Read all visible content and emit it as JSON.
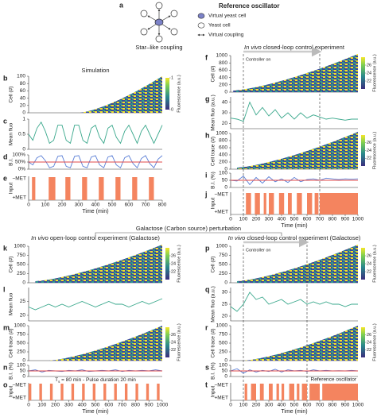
{
  "figure": {
    "label": "a",
    "diagram_caption": "Star–like coupling",
    "legend_title": "Reference oscillator",
    "legend_items": [
      "Virtual yeast cell",
      "Yeast cell",
      "Virtual coupling"
    ],
    "section_title": "Galactose (Carbon source) perturbation"
  },
  "chart_data": [
    {
      "type": "heatmap",
      "label": "b",
      "title": "Simulation",
      "ylabel": "Cell (#)",
      "xlim": [
        0,
        800
      ],
      "ylim": [
        0,
        100
      ],
      "yticks": [
        0,
        20,
        40,
        60,
        80,
        100
      ],
      "clim": [
        0,
        1
      ],
      "cticks": [
        0,
        1
      ],
      "clabel": "Fluorescence (a.u.)"
    },
    {
      "type": "line",
      "label": "c",
      "ylabel": "Mean fluo",
      "xlim": [
        0,
        800
      ],
      "ylim": [
        0,
        1
      ],
      "yticks": [
        0,
        0.5,
        1
      ],
      "x": [
        0,
        25,
        50,
        75,
        100,
        125,
        150,
        175,
        200,
        225,
        250,
        275,
        300,
        325,
        350,
        375,
        400,
        425,
        450,
        475,
        500,
        525,
        550,
        575,
        600,
        625,
        650,
        675,
        700,
        725,
        750,
        775,
        800
      ],
      "series": [
        {
          "color": "#3aa88c",
          "values": [
            0.5,
            0.3,
            0.7,
            0.9,
            0.6,
            0.2,
            0.3,
            0.8,
            0.8,
            0.3,
            0.2,
            0.8,
            0.8,
            0.3,
            0.2,
            0.7,
            0.8,
            0.4,
            0.2,
            0.7,
            0.8,
            0.4,
            0.2,
            0.6,
            0.8,
            0.5,
            0.2,
            0.6,
            0.8,
            0.5,
            0.2,
            0.5,
            0.8
          ]
        }
      ]
    },
    {
      "type": "line",
      "label": "d",
      "ylabel": "B.I.",
      "xlim": [
        0,
        800
      ],
      "ylim": [
        0,
        100
      ],
      "yticks": [
        {
          "value": 0,
          "label": "0%"
        },
        {
          "value": 50,
          "label": "50%"
        },
        {
          "value": 100,
          "label": "100%"
        }
      ],
      "x": [
        0,
        25,
        50,
        75,
        100,
        125,
        150,
        175,
        200,
        225,
        250,
        275,
        300,
        325,
        350,
        375,
        400,
        425,
        450,
        475,
        500,
        525,
        550,
        575,
        600,
        625,
        650,
        675,
        700,
        725,
        750,
        775,
        800
      ],
      "series": [
        {
          "color": "#5b7fd6",
          "values": [
            50,
            30,
            80,
            95,
            60,
            10,
            20,
            90,
            95,
            20,
            10,
            90,
            95,
            20,
            10,
            85,
            95,
            30,
            10,
            85,
            95,
            30,
            10,
            80,
            95,
            40,
            10,
            75,
            95,
            40,
            10,
            70,
            95
          ]
        },
        {
          "color": "#e04848",
          "x": [
            0,
            800
          ],
          "values": [
            50,
            50
          ]
        }
      ]
    },
    {
      "type": "input",
      "label": "e",
      "ylabel": "Input",
      "input_labels": [
        "−MET",
        "+MET"
      ],
      "color": "#f4845f",
      "xlim": [
        0,
        800
      ],
      "xticks": [
        0,
        100,
        200,
        300,
        400,
        500,
        600,
        700,
        800
      ],
      "xlabel": "Time (min)",
      "pulses": [
        [
          20,
          40
        ],
        [
          120,
          160
        ],
        [
          220,
          250
        ],
        [
          320,
          350
        ],
        [
          420,
          450
        ],
        [
          520,
          550
        ],
        [
          620,
          650
        ],
        [
          720,
          750
        ]
      ]
    },
    {
      "type": "heatmap",
      "label": "f",
      "title_italic": "In vivo",
      "title": " closed-loop control experiment",
      "ylabel": "Cell (#)",
      "xlim": [
        0,
        1000
      ],
      "ylim": [
        0,
        1000
      ],
      "yticks": [
        0,
        200,
        400,
        600,
        800,
        1000
      ],
      "clim": [
        20,
        28
      ],
      "cticks": [
        22,
        24,
        26
      ],
      "clabel": "Fluorescence (a.u.)",
      "controller_on": [
        100,
        700
      ],
      "annotation": "Controller on"
    },
    {
      "type": "line",
      "label": "g",
      "ylabel": "Mean fluo (a.u.)",
      "xlim": [
        0,
        1000
      ],
      "ylim": [
        15,
        45
      ],
      "yticks": [
        20,
        30,
        40
      ],
      "x": [
        0,
        50,
        100,
        150,
        200,
        250,
        300,
        350,
        400,
        450,
        500,
        550,
        600,
        650,
        700,
        750,
        800,
        850,
        900,
        950,
        1000
      ],
      "series": [
        {
          "color": "#3aa88c",
          "values": [
            25,
            24,
            22,
            40,
            28,
            35,
            27,
            33,
            25,
            30,
            24,
            30,
            25,
            28,
            26,
            24,
            25,
            24,
            23,
            24,
            24
          ]
        }
      ]
    },
    {
      "type": "heatmap",
      "label": "h",
      "ylabel": "Cell trace (#)",
      "xlim": [
        0,
        1000
      ],
      "ylim": [
        0,
        1000
      ],
      "yticks": [
        0,
        200,
        400,
        600,
        800,
        1000
      ],
      "clim": [
        20,
        28
      ],
      "cticks": [
        22,
        24,
        26
      ],
      "clabel": "Fluorescence (a.u.)"
    },
    {
      "type": "line",
      "label": "i",
      "ylabel": "B.I. (%)",
      "xlim": [
        0,
        1000
      ],
      "ylim": [
        0,
        100
      ],
      "yticks": [
        0,
        50,
        100
      ],
      "x": [
        0,
        50,
        100,
        150,
        200,
        250,
        300,
        350,
        400,
        450,
        500,
        550,
        600,
        650,
        700,
        750,
        800,
        850,
        900,
        950,
        1000
      ],
      "series": [
        {
          "color": "#5b7fd6",
          "values": [
            50,
            45,
            80,
            20,
            70,
            30,
            75,
            40,
            60,
            35,
            70,
            40,
            55,
            60,
            50,
            65,
            60,
            55,
            60,
            58,
            60
          ]
        },
        {
          "color": "#e04848",
          "x": [
            0,
            1000
          ],
          "values": [
            50,
            50
          ]
        }
      ]
    },
    {
      "type": "input",
      "label": "j",
      "ylabel": "Input",
      "input_labels": [
        "−MET",
        "+MET"
      ],
      "color": "#f4845f",
      "xlim": [
        0,
        1000
      ],
      "xticks": [
        0,
        100,
        200,
        300,
        400,
        500,
        600,
        700,
        800,
        900,
        1000
      ],
      "xlabel": "Time (min)",
      "pulses": [
        [
          120,
          160
        ],
        [
          190,
          230
        ],
        [
          260,
          280
        ],
        [
          300,
          340
        ],
        [
          380,
          420
        ],
        [
          450,
          480
        ],
        [
          520,
          560
        ],
        [
          600,
          640
        ],
        [
          660,
          690
        ],
        [
          700,
          1000
        ]
      ]
    },
    {
      "type": "heatmap",
      "label": "k",
      "title_italic": "In vivo",
      "title": " open-loop control experiment (Galactose)",
      "ylabel": "Cell (#)",
      "xlim": [
        0,
        1000
      ],
      "ylim": [
        0,
        1000
      ],
      "yticks": [
        0,
        250,
        500,
        750,
        1000
      ],
      "clim": [
        20,
        28
      ],
      "cticks": [
        22,
        24,
        26
      ],
      "clabel": "Fluorescence (a.u.)"
    },
    {
      "type": "line",
      "label": "l",
      "ylabel": "Mean fluo",
      "xlim": [
        0,
        1000
      ],
      "ylim": [
        18,
        30
      ],
      "yticks": [
        20,
        25
      ],
      "x": [
        0,
        50,
        100,
        150,
        200,
        250,
        300,
        350,
        400,
        450,
        500,
        550,
        600,
        650,
        700,
        750,
        800,
        850,
        900,
        950,
        1000
      ],
      "series": [
        {
          "color": "#3aa88c",
          "values": [
            23,
            22,
            23,
            24,
            23,
            24,
            23,
            24,
            25,
            24,
            23,
            24,
            25,
            24,
            24,
            23,
            24,
            25,
            24,
            25,
            26
          ]
        }
      ]
    },
    {
      "type": "heatmap",
      "label": "m",
      "ylabel": "Cell trace (#)",
      "xlim": [
        0,
        1000
      ],
      "ylim": [
        0,
        1000
      ],
      "yticks": [
        0,
        250,
        500,
        750,
        1000
      ],
      "clim": [
        20,
        28
      ],
      "cticks": [
        22,
        24,
        26
      ],
      "clabel": "Fluorescence (a.u.)"
    },
    {
      "type": "line",
      "label": "n",
      "ylabel": "B.I. (%)",
      "xlim": [
        0,
        1000
      ],
      "ylim": [
        0,
        100
      ],
      "yticks": [
        0,
        50,
        100
      ],
      "x": [
        0,
        50,
        100,
        150,
        200,
        250,
        300,
        350,
        400,
        450,
        500,
        550,
        600,
        650,
        700,
        750,
        800,
        850,
        900,
        950,
        1000
      ],
      "series": [
        {
          "color": "#5b7fd6",
          "values": [
            50,
            60,
            40,
            55,
            50,
            45,
            55,
            50,
            60,
            45,
            50,
            55,
            50,
            60,
            45,
            55,
            50,
            55,
            50,
            60,
            50
          ]
        },
        {
          "color": "#e04848",
          "x": [
            0,
            1000
          ],
          "values": [
            50,
            50
          ]
        }
      ]
    },
    {
      "type": "input",
      "label": "o",
      "ylabel": "Input",
      "input_labels": [
        "−MET",
        "+MET"
      ],
      "color": "#f4845f",
      "xlim": [
        0,
        1000
      ],
      "xticks": [
        0,
        100,
        200,
        300,
        400,
        500,
        600,
        700,
        800,
        900,
        1000
      ],
      "xlabel": "Time (min)",
      "annotation_parts": [
        "T",
        "s",
        " = 80 min - Pulse duration 20 min"
      ],
      "pulses": [
        [
          0,
          20
        ],
        [
          80,
          100
        ],
        [
          160,
          180
        ],
        [
          240,
          260
        ],
        [
          320,
          340
        ],
        [
          400,
          420
        ],
        [
          480,
          500
        ],
        [
          560,
          580
        ],
        [
          640,
          660
        ],
        [
          720,
          740
        ],
        [
          800,
          820
        ],
        [
          880,
          900
        ],
        [
          960,
          980
        ]
      ]
    },
    {
      "type": "heatmap",
      "label": "p",
      "title_italic": "In vivo",
      "title": " closed-loop control experiment (Galactose)",
      "ylabel": "Cell (#)",
      "xlim": [
        0,
        1000
      ],
      "ylim": [
        0,
        1000
      ],
      "yticks": [
        0,
        250,
        500,
        750,
        1000
      ],
      "clim": [
        20,
        28
      ],
      "cticks": [
        22,
        24,
        26
      ],
      "clabel": "Fluorescence (a.u.)",
      "controller_on": [
        100,
        600
      ],
      "annotation": "Controller on"
    },
    {
      "type": "line",
      "label": "q",
      "ylabel": "Mean fluo (a.u.)",
      "xlim": [
        0,
        1000
      ],
      "ylim": [
        18,
        32
      ],
      "yticks": [
        20,
        25,
        30
      ],
      "x": [
        0,
        50,
        100,
        150,
        200,
        250,
        300,
        350,
        400,
        450,
        500,
        550,
        600,
        650,
        700,
        750,
        800,
        850,
        900,
        950,
        1000
      ],
      "series": [
        {
          "color": "#3aa88c",
          "values": [
            24,
            22,
            25,
            30,
            27,
            28,
            25,
            26,
            27,
            25,
            26,
            27,
            25,
            26,
            25,
            26,
            25,
            25,
            24,
            25,
            25
          ]
        }
      ]
    },
    {
      "type": "heatmap",
      "label": "r",
      "ylabel": "Cell trace (#)",
      "xlim": [
        0,
        1000
      ],
      "ylim": [
        0,
        1000
      ],
      "yticks": [
        0,
        250,
        500,
        750,
        1000
      ],
      "clim": [
        20,
        28
      ],
      "cticks": [
        22,
        24,
        26
      ],
      "clabel": "Fluorescence (a.u.)"
    },
    {
      "type": "line",
      "label": "s",
      "ylabel": "B.I. (%)",
      "xlim": [
        0,
        1000
      ],
      "ylim": [
        0,
        100
      ],
      "yticks": [
        0,
        50,
        100
      ],
      "x": [
        0,
        50,
        100,
        150,
        200,
        250,
        300,
        350,
        400,
        450,
        500,
        550,
        600,
        650,
        700,
        750,
        800,
        850,
        900,
        950,
        1000
      ],
      "series": [
        {
          "color": "#5b7fd6",
          "values": [
            50,
            70,
            30,
            60,
            40,
            55,
            45,
            65,
            40,
            60,
            50,
            55,
            45,
            60,
            50,
            55,
            50,
            52,
            50,
            55,
            50
          ]
        },
        {
          "color": "#e04848",
          "x": [
            0,
            1000
          ],
          "values": [
            50,
            50
          ]
        }
      ]
    },
    {
      "type": "input",
      "label": "t",
      "ylabel": "Input",
      "input_labels": [
        "−MET",
        "+MET"
      ],
      "color": "#f4845f",
      "xlim": [
        0,
        1000
      ],
      "xticks": [
        0,
        100,
        200,
        300,
        400,
        500,
        600,
        700,
        800,
        900,
        1000
      ],
      "xlabel": "Time (min)",
      "annotation": "Reference oscillator",
      "pulses": [
        [
          110,
          130
        ],
        [
          160,
          200
        ],
        [
          230,
          260
        ],
        [
          300,
          330
        ],
        [
          360,
          380
        ],
        [
          400,
          420
        ],
        [
          460,
          500
        ],
        [
          520,
          540
        ],
        [
          560,
          600
        ],
        [
          620,
          700
        ],
        [
          720,
          1000
        ]
      ]
    }
  ]
}
